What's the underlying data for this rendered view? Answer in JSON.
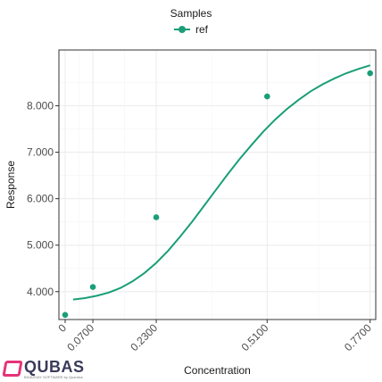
{
  "legend": {
    "title": "Samples",
    "series_label": "ref",
    "color": "#1a9e77"
  },
  "logo": {
    "name": "QUBAS",
    "tagline": "BIOASSAY SOFTWARE by Quantics"
  },
  "chart_data": {
    "type": "scatter",
    "xlabel": "Concentration",
    "ylabel": "Response",
    "x_ticks": [
      "0",
      "0.0700",
      "0.2300",
      "0.5100",
      "0.7700"
    ],
    "y_ticks": [
      "4.000",
      "5.000",
      "6.000",
      "7.000",
      "8.000"
    ],
    "ylim": [
      3.4,
      9.2
    ],
    "grid": true,
    "legend_position": "top",
    "series": [
      {
        "name": "ref",
        "color": "#1a9e77",
        "points": [
          {
            "x": "0",
            "y": 3.5
          },
          {
            "x": "0.0700",
            "y": 4.1
          },
          {
            "x": "0.2300",
            "y": 5.6
          },
          {
            "x": "0.5100",
            "y": 8.2
          },
          {
            "x": "0.7700",
            "y": 8.7
          }
        ],
        "fit_curve": [
          {
            "x": 0.02,
            "y": 3.83
          },
          {
            "x": 0.05,
            "y": 3.86
          },
          {
            "x": 0.08,
            "y": 3.91
          },
          {
            "x": 0.11,
            "y": 3.98
          },
          {
            "x": 0.14,
            "y": 4.08
          },
          {
            "x": 0.17,
            "y": 4.22
          },
          {
            "x": 0.2,
            "y": 4.4
          },
          {
            "x": 0.23,
            "y": 4.62
          },
          {
            "x": 0.26,
            "y": 4.88
          },
          {
            "x": 0.29,
            "y": 5.18
          },
          {
            "x": 0.32,
            "y": 5.5
          },
          {
            "x": 0.35,
            "y": 5.84
          },
          {
            "x": 0.38,
            "y": 6.18
          },
          {
            "x": 0.41,
            "y": 6.52
          },
          {
            "x": 0.44,
            "y": 6.85
          },
          {
            "x": 0.47,
            "y": 7.15
          },
          {
            "x": 0.5,
            "y": 7.44
          },
          {
            "x": 0.53,
            "y": 7.7
          },
          {
            "x": 0.56,
            "y": 7.93
          },
          {
            "x": 0.59,
            "y": 8.13
          },
          {
            "x": 0.62,
            "y": 8.31
          },
          {
            "x": 0.65,
            "y": 8.46
          },
          {
            "x": 0.68,
            "y": 8.59
          },
          {
            "x": 0.71,
            "y": 8.7
          },
          {
            "x": 0.74,
            "y": 8.79
          },
          {
            "x": 0.77,
            "y": 8.87
          }
        ]
      }
    ]
  }
}
